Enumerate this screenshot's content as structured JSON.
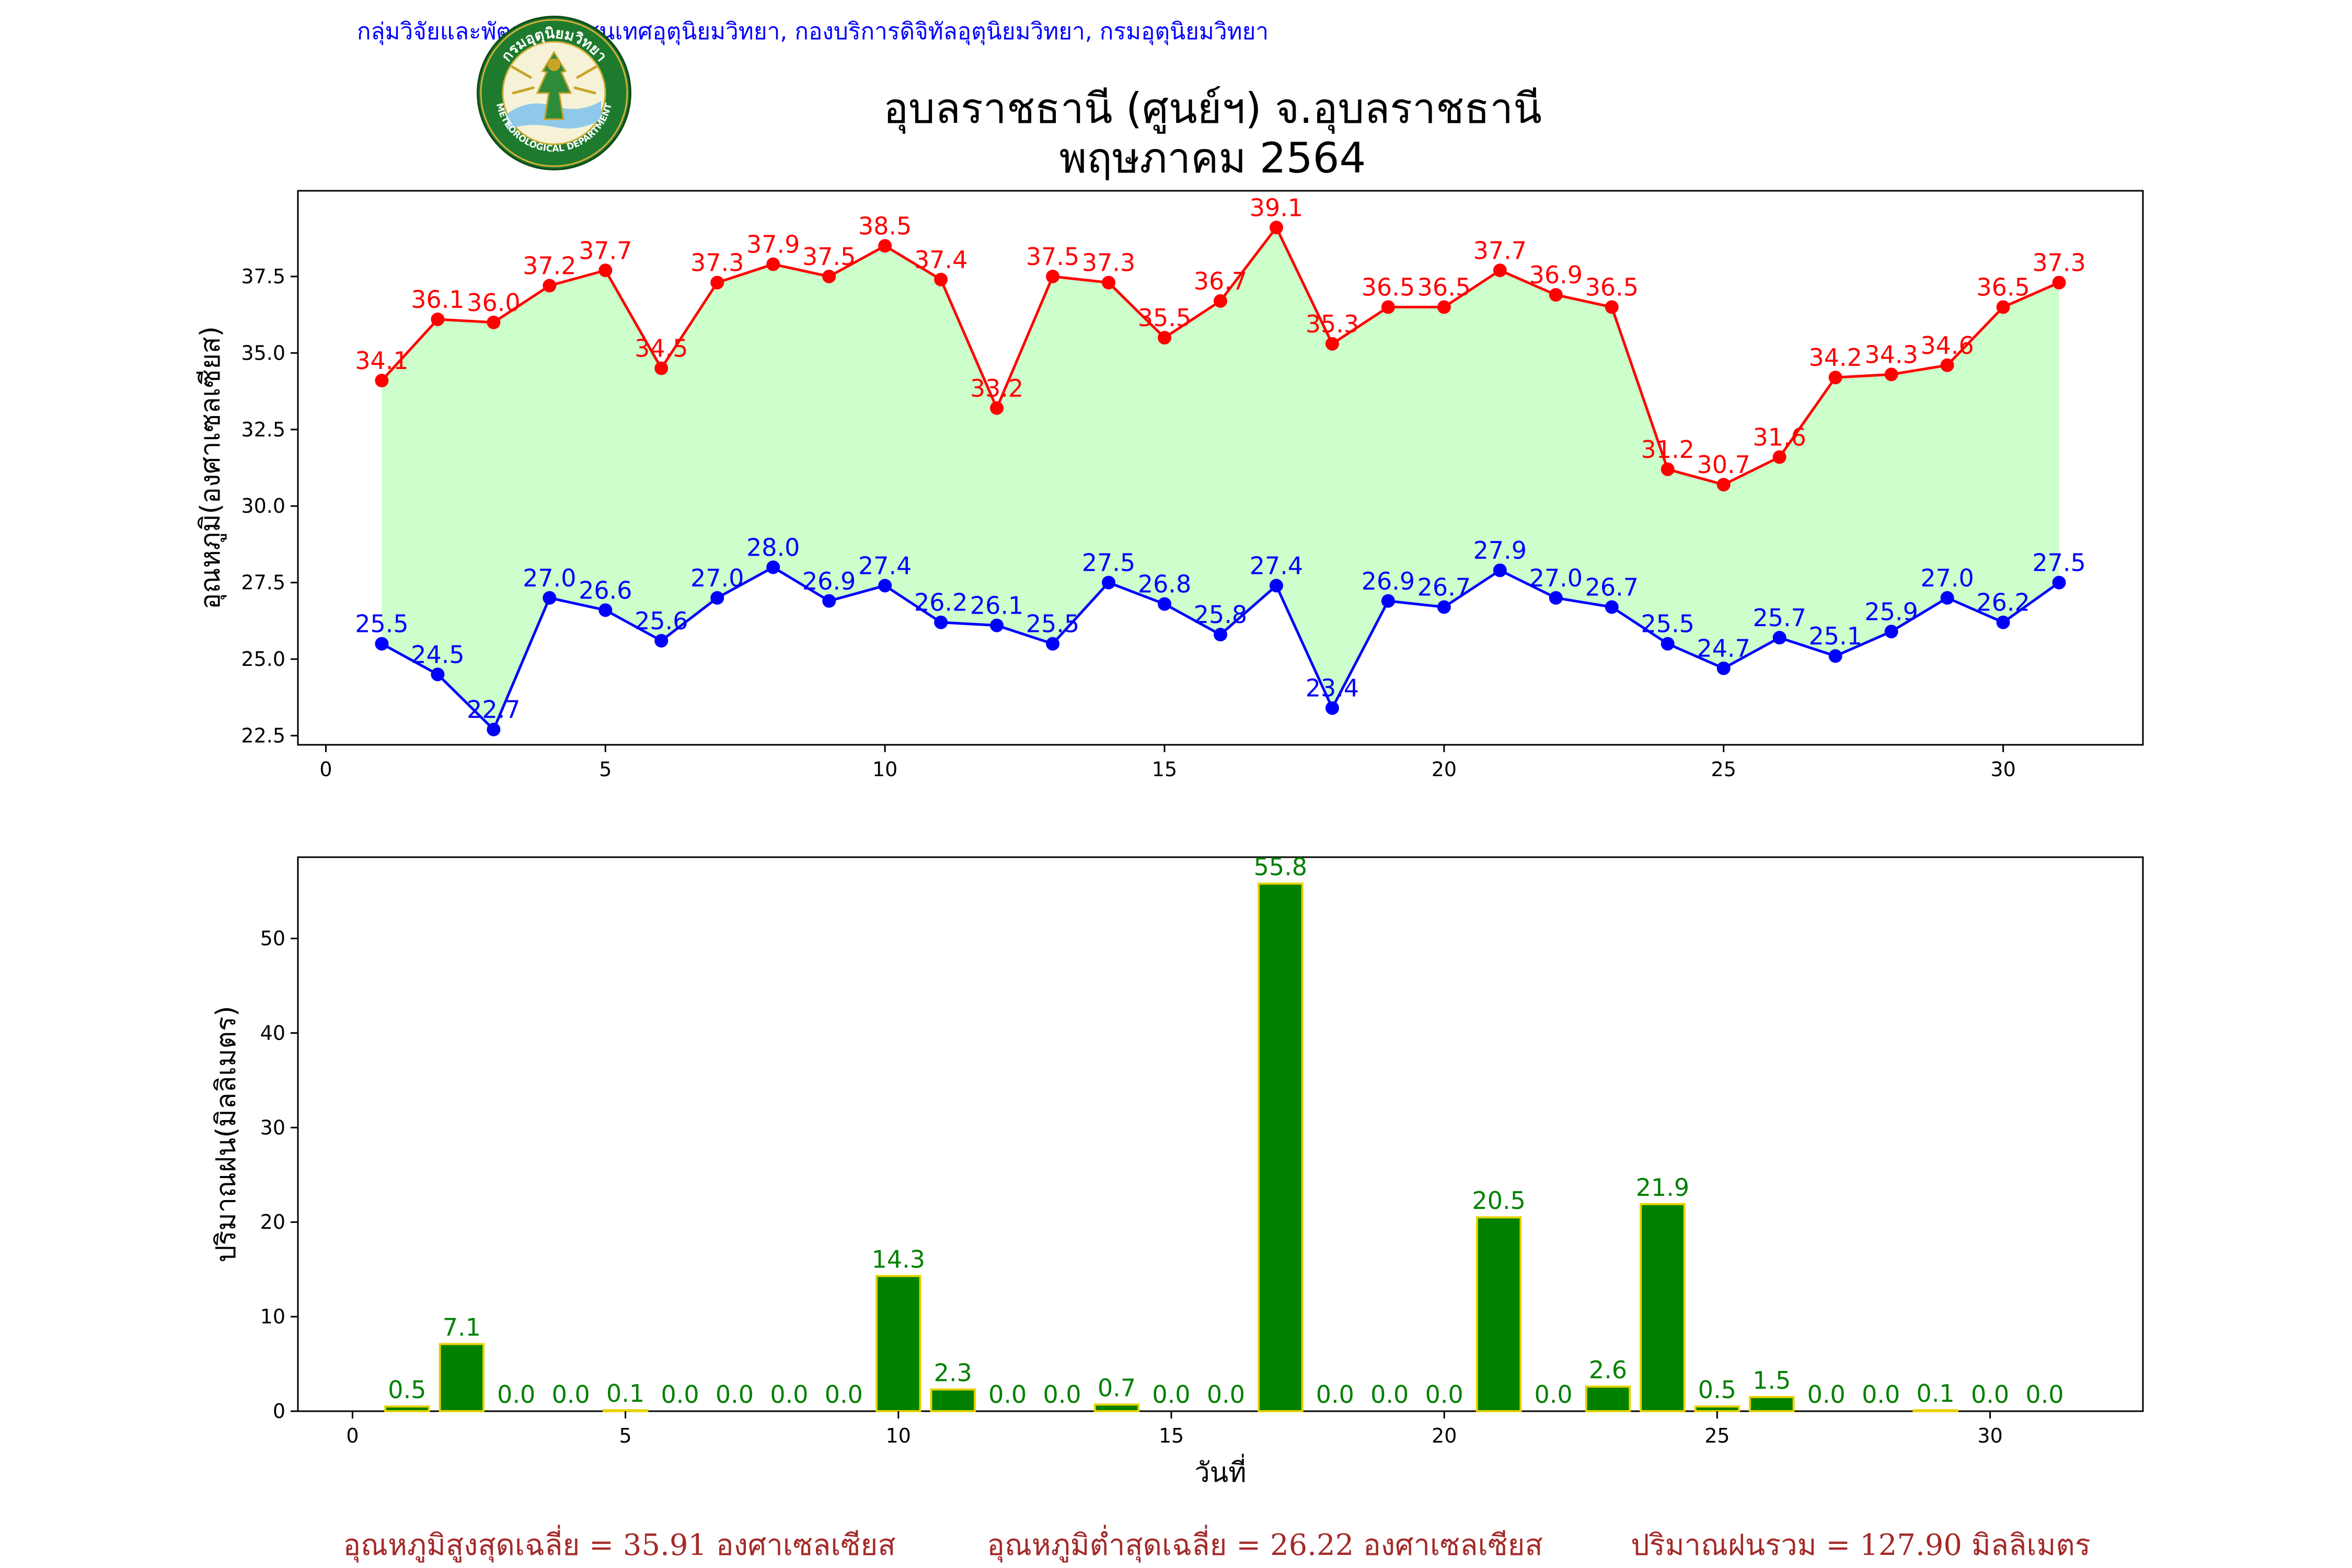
{
  "header": {
    "organization": "กลุ่มวิจัยและพัฒนาสารสนเทศอุตุนิยมวิทยา, กองบริการดิจิทัลอุตุนิยมวิทยา, กรมอุตุนิยมวิทยา",
    "logo_text_top": "กรมอุตุนิยมวิทยา",
    "logo_text_bottom": "METEOROLOGICAL DEPARTMENT",
    "title_line1": "อุบลราชธานี (ศูนย์ฯ) จ.อุบลราชธานี",
    "title_line2": "พฤษภาคม 2564"
  },
  "colors": {
    "tmax": "#ff0000",
    "tmin": "#0000ff",
    "fill": "#ccffcc",
    "bar": "#008000",
    "bar_edge": "#e6d200",
    "bar_label": "#008000",
    "footer": "#a52a2a"
  },
  "chart_data": [
    {
      "type": "line",
      "ylabel": "อุณหภูมิ(องศาเซลเซียส)",
      "xlabel": "",
      "x": [
        1,
        2,
        3,
        4,
        5,
        6,
        7,
        8,
        9,
        10,
        11,
        12,
        13,
        14,
        15,
        16,
        17,
        18,
        19,
        20,
        21,
        22,
        23,
        24,
        25,
        26,
        27,
        28,
        29,
        30,
        31
      ],
      "xlim": [
        -0.5,
        32.5
      ],
      "ylim": [
        22.2,
        40.3
      ],
      "xticks": [
        0,
        5,
        10,
        15,
        20,
        25,
        30
      ],
      "yticks": [
        22.5,
        25.0,
        27.5,
        30.0,
        32.5,
        35.0,
        37.5
      ],
      "fill_between": true,
      "series": [
        {
          "key": "tmax",
          "values": [
            34.1,
            36.1,
            36.0,
            37.2,
            37.7,
            34.5,
            37.3,
            37.9,
            37.5,
            38.5,
            37.4,
            33.2,
            37.5,
            37.3,
            35.5,
            36.7,
            39.1,
            35.3,
            36.5,
            36.5,
            37.7,
            36.9,
            36.5,
            31.2,
            30.7,
            31.6,
            34.2,
            34.3,
            34.6,
            36.5,
            37.3
          ]
        },
        {
          "key": "tmin",
          "values": [
            25.5,
            24.5,
            22.7,
            27.0,
            26.6,
            25.6,
            27.0,
            28.0,
            26.9,
            27.4,
            26.2,
            26.1,
            25.5,
            27.5,
            26.8,
            25.8,
            27.4,
            23.4,
            26.9,
            26.7,
            27.9,
            27.0,
            26.7,
            25.5,
            24.7,
            25.7,
            25.1,
            25.9,
            27.0,
            26.2,
            27.5
          ]
        }
      ]
    },
    {
      "type": "bar",
      "ylabel": "ปริมาณฝน(มิลลิเมตร)",
      "xlabel": "วันที่",
      "x": [
        1,
        2,
        3,
        4,
        5,
        6,
        7,
        8,
        9,
        10,
        11,
        12,
        13,
        14,
        15,
        16,
        17,
        18,
        19,
        20,
        21,
        22,
        23,
        24,
        25,
        26,
        27,
        28,
        29,
        30,
        31
      ],
      "xlim": [
        -1.0,
        32.8
      ],
      "ylim": [
        0,
        58.6
      ],
      "xticks": [
        0,
        5,
        10,
        15,
        20,
        25,
        30
      ],
      "yticks": [
        0,
        10,
        20,
        30,
        40,
        50
      ],
      "values": [
        0.5,
        7.1,
        0.0,
        0.0,
        0.1,
        0.0,
        0.0,
        0.0,
        0.0,
        14.3,
        2.3,
        0.0,
        0.0,
        0.7,
        0.0,
        0.0,
        55.8,
        0.0,
        0.0,
        0.0,
        20.5,
        0.0,
        2.6,
        21.9,
        0.5,
        1.5,
        0.0,
        0.0,
        0.1,
        0.0,
        0.0
      ]
    }
  ],
  "footer": {
    "avg_max": "อุณหภูมิสูงสุดเฉลี่ย = 35.91 องศาเซลเซียส",
    "avg_min": "อุณหภูมิต่ำสุดเฉลี่ย = 26.22 องศาเซลเซียส",
    "total_rain": "ปริมาณฝนรวม = 127.90 มิลลิเมตร"
  }
}
